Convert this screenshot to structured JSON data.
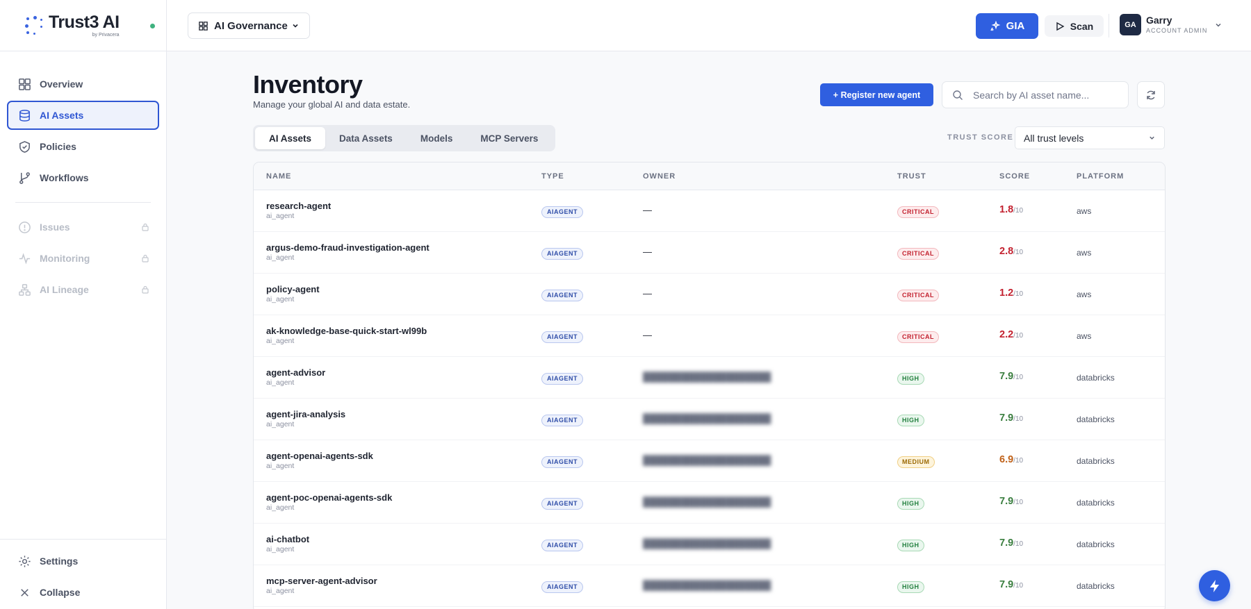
{
  "brand": {
    "name": "Trust3 AI",
    "sub": "by Privacera"
  },
  "sidebar": {
    "items": [
      {
        "label": "Overview",
        "icon": "grid-icon"
      },
      {
        "label": "AI Assets",
        "icon": "database-icon"
      },
      {
        "label": "Policies",
        "icon": "shield-icon"
      },
      {
        "label": "Workflows",
        "icon": "branch-icon"
      },
      {
        "label": "Issues",
        "icon": "alert-circle-icon"
      },
      {
        "label": "Monitoring",
        "icon": "activity-icon"
      },
      {
        "label": "AI Lineage",
        "icon": "hierarchy-icon"
      }
    ],
    "bottom": [
      {
        "label": "Settings",
        "icon": "gear-icon"
      },
      {
        "label": "Collapse",
        "icon": "close-icon"
      }
    ]
  },
  "topbar": {
    "scope": "AI Governance",
    "gia": "GIA",
    "scan": "Scan",
    "user": {
      "initials": "GA",
      "name": "Garry",
      "role": "ACCOUNT ADMIN"
    }
  },
  "page": {
    "title": "Inventory",
    "subtitle": "Manage your global AI and data estate.",
    "register_label": "+ Register new agent",
    "search_placeholder": "Search by AI asset name...",
    "tabs": [
      "AI Assets",
      "Data Assets",
      "Models",
      "MCP Servers"
    ],
    "trust_filter_label": "TRUST SCORE",
    "trust_filter_value": "All trust levels"
  },
  "table": {
    "columns": [
      "NAME",
      "TYPE",
      "OWNER",
      "TRUST",
      "SCORE",
      "PLATFORM"
    ],
    "rows": [
      {
        "name": "research-agent",
        "sub": "ai_agent",
        "type": "AIAGENT",
        "owner": "—",
        "trust": "CRITICAL",
        "score": "1.8",
        "out": "/10",
        "platform": "aws"
      },
      {
        "name": "argus-demo-fraud-investigation-agent",
        "sub": "ai_agent",
        "type": "AIAGENT",
        "owner": "—",
        "trust": "CRITICAL",
        "score": "2.8",
        "out": "/10",
        "platform": "aws"
      },
      {
        "name": "policy-agent",
        "sub": "ai_agent",
        "type": "AIAGENT",
        "owner": "—",
        "trust": "CRITICAL",
        "score": "1.2",
        "out": "/10",
        "platform": "aws"
      },
      {
        "name": "ak-knowledge-base-quick-start-wl99b",
        "sub": "ai_agent",
        "type": "AIAGENT",
        "owner": "—",
        "trust": "CRITICAL",
        "score": "2.2",
        "out": "/10",
        "platform": "aws"
      },
      {
        "name": "agent-advisor",
        "sub": "ai_agent",
        "type": "AIAGENT",
        "owner": "",
        "trust": "HIGH",
        "score": "7.9",
        "out": "/10",
        "platform": "databricks"
      },
      {
        "name": "agent-jira-analysis",
        "sub": "ai_agent",
        "type": "AIAGENT",
        "owner": "",
        "trust": "HIGH",
        "score": "7.9",
        "out": "/10",
        "platform": "databricks"
      },
      {
        "name": "agent-openai-agents-sdk",
        "sub": "ai_agent",
        "type": "AIAGENT",
        "owner": "",
        "trust": "MEDIUM",
        "score": "6.9",
        "out": "/10",
        "platform": "databricks"
      },
      {
        "name": "agent-poc-openai-agents-sdk",
        "sub": "ai_agent",
        "type": "AIAGENT",
        "owner": "",
        "trust": "HIGH",
        "score": "7.9",
        "out": "/10",
        "platform": "databricks"
      },
      {
        "name": "ai-chatbot",
        "sub": "ai_agent",
        "type": "AIAGENT",
        "owner": "",
        "trust": "HIGH",
        "score": "7.9",
        "out": "/10",
        "platform": "databricks"
      },
      {
        "name": "mcp-server-agent-advisor",
        "sub": "ai_agent",
        "type": "AIAGENT",
        "owner": "",
        "trust": "HIGH",
        "score": "7.9",
        "out": "/10",
        "platform": "databricks"
      }
    ]
  },
  "colors": {
    "accent": "#2f5fe0",
    "critical": "#c3212f",
    "high": "#3a7e3f",
    "medium": "#c0621a"
  }
}
